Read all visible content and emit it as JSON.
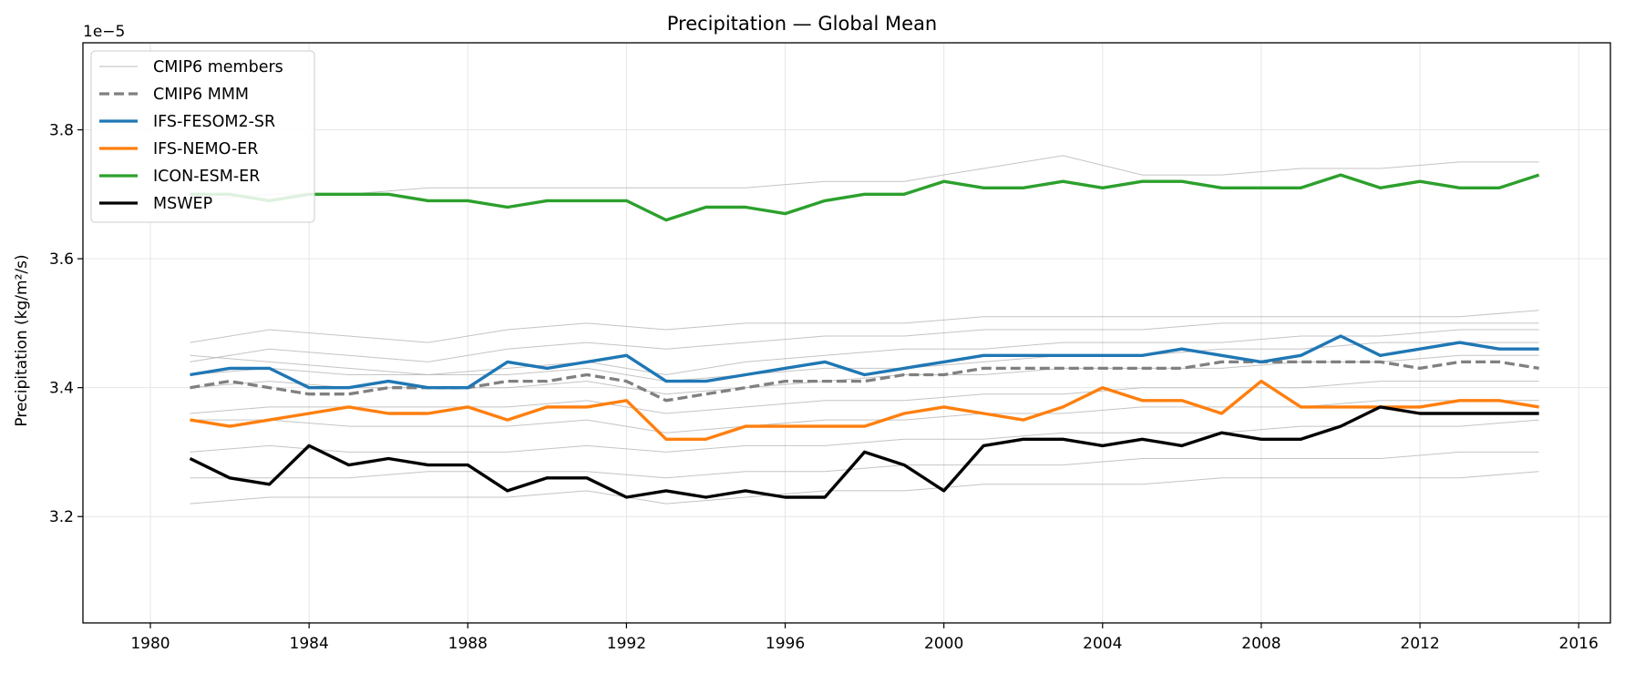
{
  "chart_data": {
    "type": "line",
    "title": "Precipitation — Global Mean",
    "xlabel": "",
    "ylabel": "Precipitation (kg/m²/s)",
    "y_offset_label": "1e−5",
    "xlim": [
      1978.3,
      2016.8
    ],
    "ylim": [
      3.035,
      3.935
    ],
    "x_ticks": [
      1980,
      1984,
      1988,
      1992,
      1996,
      2000,
      2004,
      2008,
      2012,
      2016
    ],
    "y_ticks": [
      3.2,
      3.4,
      3.6,
      3.8
    ],
    "grid": true,
    "legend_placement": "top-left",
    "legend": [
      {
        "label": "CMIP6 members",
        "color": "#bbbbbb",
        "style": "thin"
      },
      {
        "label": "CMIP6 MMM",
        "color": "#808080",
        "style": "dashed"
      },
      {
        "label": "IFS-FESOM2-SR",
        "color": "#1f77b4",
        "style": "solid"
      },
      {
        "label": "IFS-NEMO-ER",
        "color": "#ff7f0e",
        "style": "solid"
      },
      {
        "label": "ICON-ESM-ER",
        "color": "#2ca02c",
        "style": "solid"
      },
      {
        "label": "MSWEP",
        "color": "#000000",
        "style": "solid"
      }
    ],
    "annual_x": [
      1981,
      1982,
      1983,
      1984,
      1985,
      1986,
      1987,
      1988,
      1989,
      1990,
      1991,
      1992,
      1993,
      1994,
      1995,
      1996,
      1997,
      1998,
      1999,
      2000,
      2001,
      2002,
      2003,
      2004,
      2005,
      2006,
      2007,
      2008,
      2009,
      2010,
      2011,
      2012,
      2013,
      2014,
      2015
    ],
    "members_x": [
      1981,
      1983,
      1985,
      1987,
      1989,
      1991,
      1993,
      1995,
      1997,
      1999,
      2001,
      2003,
      2005,
      2007,
      2009,
      2011,
      2013,
      2015
    ],
    "members": [
      [
        3.47,
        3.49,
        3.48,
        3.47,
        3.49,
        3.5,
        3.49,
        3.5,
        3.5,
        3.5,
        3.51,
        3.51,
        3.51,
        3.51,
        3.51,
        3.51,
        3.51,
        3.52
      ],
      [
        3.44,
        3.46,
        3.45,
        3.44,
        3.46,
        3.47,
        3.46,
        3.47,
        3.48,
        3.48,
        3.49,
        3.49,
        3.49,
        3.5,
        3.5,
        3.5,
        3.5,
        3.5
      ],
      [
        3.45,
        3.44,
        3.43,
        3.42,
        3.43,
        3.44,
        3.42,
        3.44,
        3.45,
        3.46,
        3.46,
        3.47,
        3.47,
        3.47,
        3.48,
        3.48,
        3.49,
        3.49
      ],
      [
        3.42,
        3.43,
        3.42,
        3.42,
        3.42,
        3.43,
        3.41,
        3.42,
        3.43,
        3.43,
        3.44,
        3.45,
        3.45,
        3.46,
        3.46,
        3.47,
        3.47,
        3.47
      ],
      [
        3.4,
        3.41,
        3.4,
        3.4,
        3.4,
        3.41,
        3.39,
        3.4,
        3.41,
        3.42,
        3.42,
        3.43,
        3.43,
        3.43,
        3.44,
        3.44,
        3.45,
        3.45
      ],
      [
        3.36,
        3.37,
        3.37,
        3.37,
        3.37,
        3.38,
        3.36,
        3.37,
        3.38,
        3.38,
        3.39,
        3.39,
        3.4,
        3.4,
        3.4,
        3.41,
        3.41,
        3.41
      ],
      [
        3.35,
        3.35,
        3.34,
        3.34,
        3.34,
        3.35,
        3.33,
        3.34,
        3.35,
        3.35,
        3.36,
        3.36,
        3.37,
        3.37,
        3.37,
        3.38,
        3.38,
        3.38
      ],
      [
        3.3,
        3.31,
        3.3,
        3.3,
        3.3,
        3.31,
        3.3,
        3.31,
        3.31,
        3.32,
        3.32,
        3.33,
        3.33,
        3.33,
        3.34,
        3.34,
        3.34,
        3.35
      ],
      [
        3.26,
        3.26,
        3.26,
        3.27,
        3.27,
        3.27,
        3.26,
        3.27,
        3.27,
        3.28,
        3.28,
        3.28,
        3.29,
        3.29,
        3.29,
        3.29,
        3.3,
        3.3
      ],
      [
        3.22,
        3.23,
        3.23,
        3.23,
        3.23,
        3.24,
        3.22,
        3.23,
        3.24,
        3.24,
        3.25,
        3.25,
        3.25,
        3.26,
        3.26,
        3.26,
        3.26,
        3.27
      ],
      [
        3.69,
        3.7,
        3.7,
        3.71,
        3.71,
        3.71,
        3.71,
        3.71,
        3.72,
        3.72,
        3.74,
        3.76,
        3.73,
        3.73,
        3.74,
        3.74,
        3.75,
        3.75
      ]
    ],
    "series": [
      {
        "name": "CMIP6 MMM",
        "color": "#808080",
        "style": "dashed",
        "values": [
          3.4,
          3.41,
          3.4,
          3.39,
          3.39,
          3.4,
          3.4,
          3.4,
          3.41,
          3.41,
          3.42,
          3.41,
          3.38,
          3.39,
          3.4,
          3.41,
          3.41,
          3.41,
          3.42,
          3.42,
          3.43,
          3.43,
          3.43,
          3.43,
          3.43,
          3.43,
          3.44,
          3.44,
          3.44,
          3.44,
          3.44,
          3.43,
          3.44,
          3.44,
          3.43
        ]
      },
      {
        "name": "IFS-FESOM2-SR",
        "color": "#1f77b4",
        "style": "solid",
        "values": [
          3.42,
          3.43,
          3.43,
          3.4,
          3.4,
          3.41,
          3.4,
          3.4,
          3.44,
          3.43,
          3.44,
          3.45,
          3.41,
          3.41,
          3.42,
          3.43,
          3.44,
          3.42,
          3.43,
          3.44,
          3.45,
          3.45,
          3.45,
          3.45,
          3.45,
          3.46,
          3.45,
          3.44,
          3.45,
          3.48,
          3.45,
          3.46,
          3.47,
          3.46,
          3.46
        ]
      },
      {
        "name": "IFS-NEMO-ER",
        "color": "#ff7f0e",
        "style": "solid",
        "values": [
          3.35,
          3.34,
          3.35,
          3.36,
          3.37,
          3.36,
          3.36,
          3.37,
          3.35,
          3.37,
          3.37,
          3.38,
          3.32,
          3.32,
          3.34,
          3.34,
          3.34,
          3.34,
          3.36,
          3.37,
          3.36,
          3.35,
          3.37,
          3.4,
          3.38,
          3.38,
          3.36,
          3.41,
          3.37,
          3.37,
          3.37,
          3.37,
          3.38,
          3.38,
          3.37
        ]
      },
      {
        "name": "ICON-ESM-ER",
        "color": "#2ca02c",
        "style": "solid",
        "values": [
          3.7,
          3.7,
          3.69,
          3.7,
          3.7,
          3.7,
          3.69,
          3.69,
          3.68,
          3.69,
          3.69,
          3.69,
          3.66,
          3.68,
          3.68,
          3.67,
          3.69,
          3.7,
          3.7,
          3.72,
          3.71,
          3.71,
          3.72,
          3.71,
          3.72,
          3.72,
          3.71,
          3.71,
          3.71,
          3.73,
          3.71,
          3.72,
          3.71,
          3.71,
          3.73
        ]
      },
      {
        "name": "MSWEP",
        "color": "#000000",
        "style": "solid",
        "values": [
          3.29,
          3.26,
          3.25,
          3.31,
          3.28,
          3.29,
          3.28,
          3.28,
          3.24,
          3.26,
          3.26,
          3.23,
          3.24,
          3.23,
          3.24,
          3.23,
          3.23,
          3.3,
          3.28,
          3.24,
          3.31,
          3.32,
          3.32,
          3.31,
          3.32,
          3.31,
          3.33,
          3.32,
          3.32,
          3.34,
          3.37,
          3.36,
          3.36,
          3.36,
          3.36
        ]
      }
    ]
  }
}
